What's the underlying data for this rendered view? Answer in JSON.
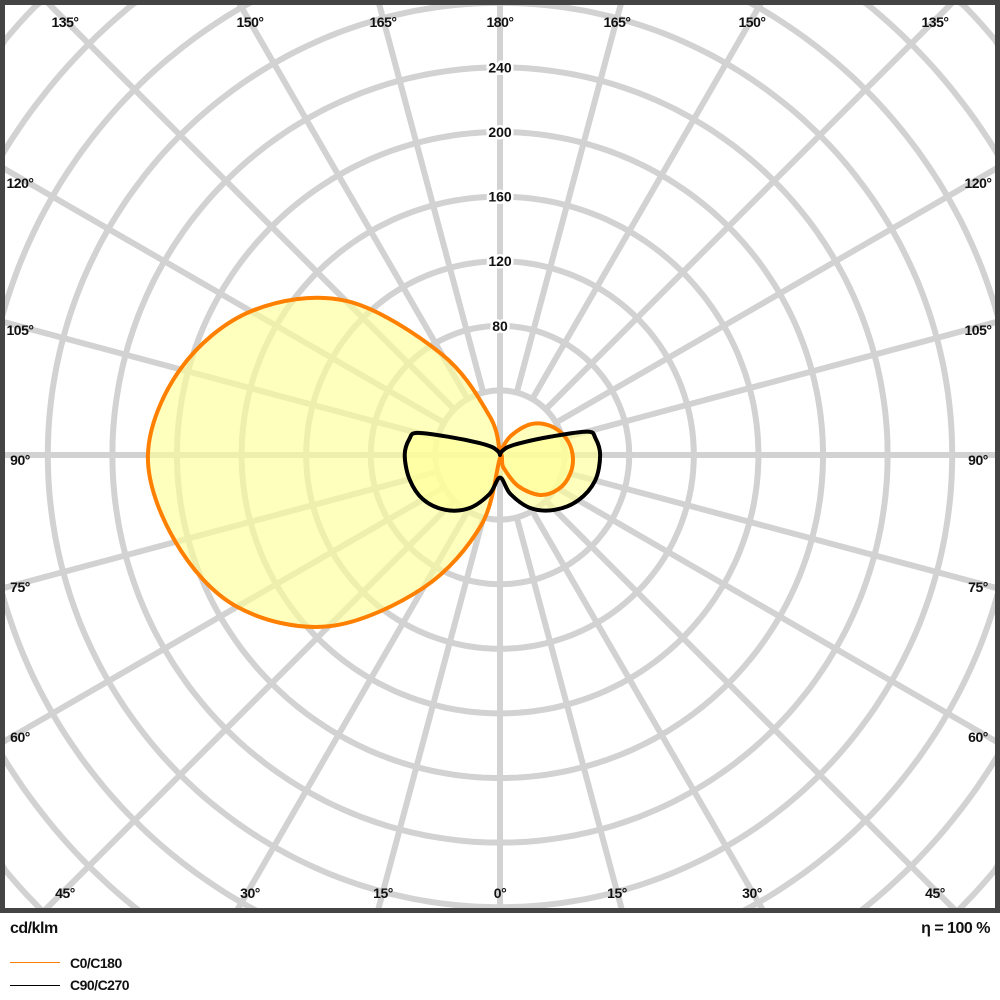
{
  "chart_data": {
    "type": "polar",
    "unit_label": "cd/klm",
    "efficiency_label": "η = 100 %",
    "radial_ticks": [
      80,
      120,
      160,
      200,
      240
    ],
    "ring_step": 40,
    "angle_labels": {
      "top": [
        "135°",
        "150°",
        "165°",
        "180°",
        "165°",
        "150°",
        "135°"
      ],
      "left": [
        "120°",
        "105°",
        "90°",
        "75°",
        "60°"
      ],
      "right": [
        "120°",
        "105°",
        "90°",
        "75°",
        "60°"
      ],
      "bottom": [
        "45°",
        "30°",
        "15°",
        "0°",
        "15°",
        "30°",
        "45°"
      ]
    },
    "grid": true,
    "fill_color": "#ffff99",
    "series": [
      {
        "name": "C0/C180",
        "color": "#ff8000",
        "left_half": [
          [
            0,
            2
          ],
          [
            15,
            45
          ],
          [
            30,
            95
          ],
          [
            45,
            150
          ],
          [
            60,
            188
          ],
          [
            75,
            208
          ],
          [
            90,
            218
          ],
          [
            105,
            205
          ],
          [
            120,
            178
          ],
          [
            135,
            135
          ],
          [
            150,
            72
          ],
          [
            165,
            25
          ],
          [
            180,
            2
          ]
        ],
        "right_half": [
          [
            0,
            0
          ],
          [
            15,
            8
          ],
          [
            30,
            22
          ],
          [
            45,
            35
          ],
          [
            60,
            42
          ],
          [
            75,
            45
          ],
          [
            90,
            45
          ],
          [
            105,
            42
          ],
          [
            120,
            36
          ],
          [
            135,
            27
          ],
          [
            150,
            14
          ],
          [
            165,
            4
          ],
          [
            180,
            0
          ]
        ]
      },
      {
        "name": "C90/C270",
        "color": "#000000",
        "left_half": [
          [
            0,
            14
          ],
          [
            15,
            25
          ],
          [
            30,
            38
          ],
          [
            45,
            48
          ],
          [
            60,
            55
          ],
          [
            75,
            58
          ],
          [
            90,
            59
          ],
          [
            100,
            57
          ],
          [
            105,
            53
          ],
          [
            110,
            32
          ],
          [
            120,
            15
          ],
          [
            135,
            7
          ],
          [
            150,
            3
          ],
          [
            165,
            1
          ],
          [
            180,
            0
          ]
        ],
        "right_half": [
          [
            0,
            14
          ],
          [
            15,
            25
          ],
          [
            30,
            38
          ],
          [
            45,
            48
          ],
          [
            60,
            56
          ],
          [
            75,
            61
          ],
          [
            90,
            62
          ],
          [
            100,
            60
          ],
          [
            105,
            56
          ],
          [
            110,
            33
          ],
          [
            120,
            15
          ],
          [
            135,
            7
          ],
          [
            150,
            3
          ],
          [
            165,
            1
          ],
          [
            180,
            0
          ]
        ]
      }
    ]
  }
}
